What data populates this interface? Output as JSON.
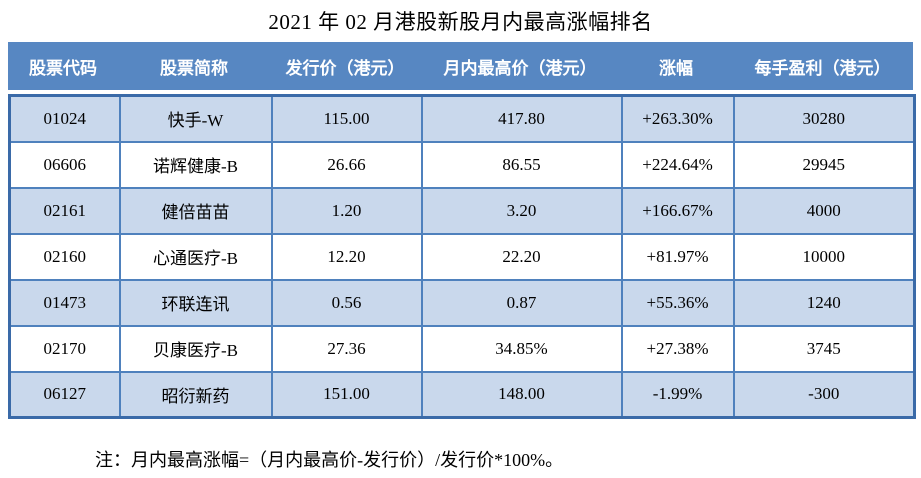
{
  "page": {
    "title": "2021 年 02 月港股新股月内最高涨幅排名",
    "note": "注：月内最高涨幅=（月内最高价-发行价）/发行价*100%。"
  },
  "colors": {
    "header-bg": "#5787c2",
    "band-bg": "#c9d8ec",
    "row-bg": "#ffffff",
    "border": "#4f81bd",
    "border-outer": "#3a6aa8",
    "header-text": "#ffffff",
    "text": "#000000",
    "page-bg": "#ffffff"
  },
  "chart_data": {
    "type": "table",
    "title": "2021 年 02 月港股新股月内最高涨幅排名",
    "columns": [
      "股票代码",
      "股票简称",
      "发行价（港元）",
      "月内最高价（港元）",
      "涨幅",
      "每手盈利（港元）"
    ],
    "rows": [
      [
        "01024",
        "快手-W",
        "115.00",
        "417.80",
        "+263.30%",
        "30280"
      ],
      [
        "06606",
        "诺辉健康-B",
        "26.66",
        "86.55",
        "+224.64%",
        "29945"
      ],
      [
        "02161",
        "健倍苗苗",
        "1.20",
        "3.20",
        "+166.67%",
        "4000"
      ],
      [
        "02160",
        "心通医疗-B",
        "12.20",
        "22.20",
        "+81.97%",
        "10000"
      ],
      [
        "01473",
        "环联连讯",
        "0.56",
        "0.87",
        "+55.36%",
        "1240"
      ],
      [
        "02170",
        "贝康医疗-B",
        "27.36",
        "34.85%",
        "+27.38%",
        "3745"
      ],
      [
        "06127",
        "昭衍新药",
        "151.00",
        "148.00",
        "-1.99%",
        "-300"
      ]
    ],
    "row_banding": "odd rows light blue, even rows white",
    "legend_position": "none",
    "note": "注：月内最高涨幅=（月内最高价-发行价）/发行价*100%。"
  }
}
